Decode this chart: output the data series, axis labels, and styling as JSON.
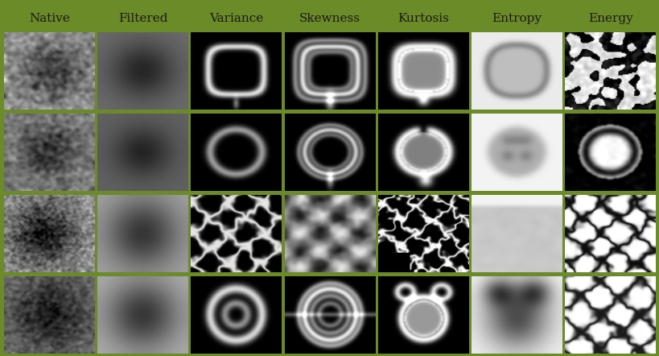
{
  "columns": [
    "Native",
    "Filtered",
    "Variance",
    "Skewness",
    "Kurtosis",
    "Entropy",
    "Energy"
  ],
  "n_rows": 4,
  "n_cols": 7,
  "background_color": "#6b8a28",
  "header_fontsize": 11,
  "header_color": "#1a1a1a",
  "fig_width": 8.2,
  "fig_height": 4.42,
  "dpi": 100
}
